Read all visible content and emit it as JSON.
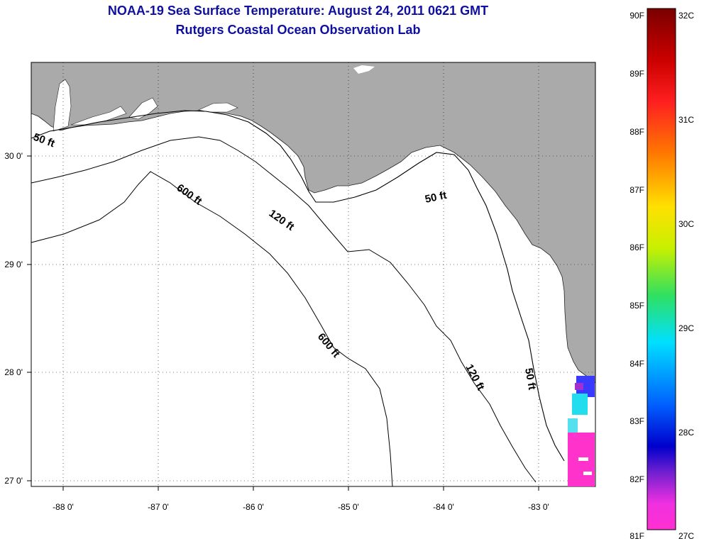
{
  "title": {
    "line1": "NOAA-19 Sea Surface Temperature:  August 24, 2011 0621 GMT",
    "line2": "Rutgers Coastal Ocean Observation Lab"
  },
  "axes": {
    "lon_ticks": [
      "-88 0'",
      "-87 0'",
      "-86 0'",
      "-85 0'",
      "-84 0'",
      "-83 0'"
    ],
    "lat_ticks": [
      "30 0'",
      "29 0'",
      "28 0'",
      "27 0'"
    ]
  },
  "contours": {
    "shallow_label": "50 ft",
    "mid_label": "120 ft",
    "deep_label": "600 ft"
  },
  "colorbar": {
    "fahrenheit": [
      "90F",
      "89F",
      "88F",
      "87F",
      "86F",
      "85F",
      "84F",
      "83F",
      "82F",
      "81F"
    ],
    "celsius": [
      "32C",
      "31C",
      "30C",
      "29C",
      "28C",
      "27C"
    ]
  },
  "colors": {
    "land": "#aaaaaa",
    "ocean": "#ffffff",
    "title": "#1010a0"
  }
}
